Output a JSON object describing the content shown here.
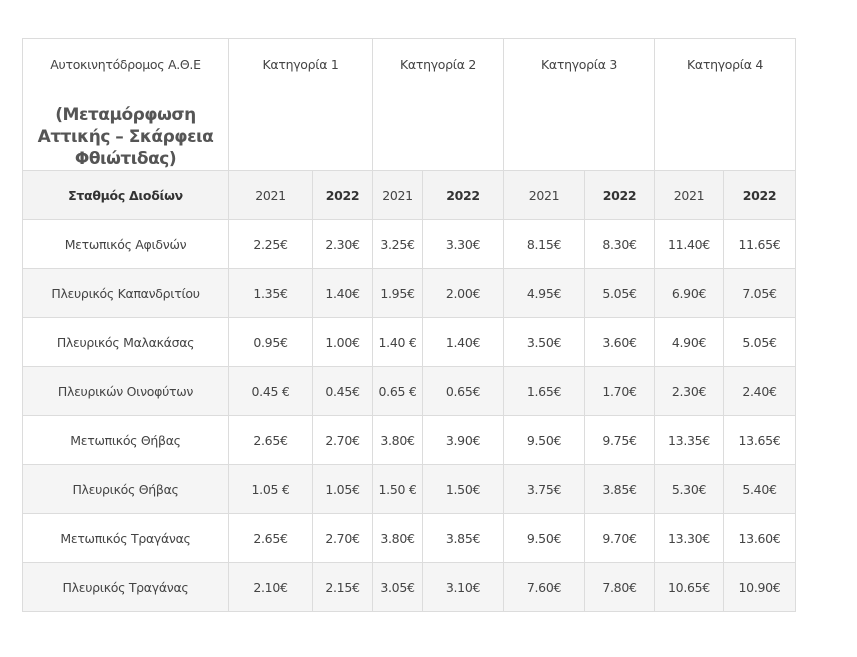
{
  "header": {
    "title": "Αυτοκινητόδρομος Α.Θ.Ε",
    "subtitle": "(Μεταμόρφωση Αττικής – Σκάρφεια Φθιώτιδας)",
    "categories": [
      "Κατηγορία  1",
      "Κατηγορία 2",
      "Κατηγορία 3",
      "Κατηγορία 4"
    ]
  },
  "subheader": {
    "station_label": "Σταθμός Διοδίων",
    "years": [
      "2021",
      "2022",
      "2021",
      "2022",
      "2021",
      "2022",
      "2021",
      "2022"
    ]
  },
  "rows": [
    {
      "station": "Μετωπικός Αφιδνών",
      "values": [
        "2.25€",
        "2.30€",
        "3.25€",
        "3.30€",
        "8.15€",
        "8.30€",
        "11.40€",
        "11.65€"
      ]
    },
    {
      "station": "Πλευρικός Καπανδριτίου",
      "values": [
        "1.35€",
        "1.40€",
        "1.95€",
        "2.00€",
        "4.95€",
        "5.05€",
        "6.90€",
        "7.05€"
      ]
    },
    {
      "station": "Πλευρικός Μαλακάσας",
      "values": [
        "0.95€",
        "1.00€",
        "1.40 €",
        "1.40€",
        "3.50€",
        "3.60€",
        "4.90€",
        "5.05€"
      ]
    },
    {
      "station": "Πλευρικών Οινοφύτων",
      "values": [
        "0.45 €",
        "0.45€",
        "0.65 €",
        "0.65€",
        "1.65€",
        "1.70€",
        "2.30€",
        "2.40€"
      ]
    },
    {
      "station": "Μετωπικός Θήβας",
      "values": [
        "2.65€",
        "2.70€",
        "3.80€",
        "3.90€",
        "9.50€",
        "9.75€",
        "13.35€",
        "13.65€"
      ]
    },
    {
      "station": "Πλευρικός Θήβας",
      "values": [
        "1.05 €",
        "1.05€",
        "1.50 €",
        "1.50€",
        "3.75€",
        "3.85€",
        "5.30€",
        "5.40€"
      ]
    },
    {
      "station": "Μετωπικός Τραγάνας",
      "values": [
        "2.65€",
        "2.70€",
        "3.80€",
        "3.85€",
        "9.50€",
        "9.70€",
        "13.30€",
        "13.60€"
      ]
    },
    {
      "station": "Πλευρικός Τραγάνας",
      "values": [
        "2.10€",
        "2.15€",
        "3.05€",
        "3.10€",
        "7.60€",
        "7.80€",
        "10.65€",
        "10.90€"
      ]
    }
  ]
}
